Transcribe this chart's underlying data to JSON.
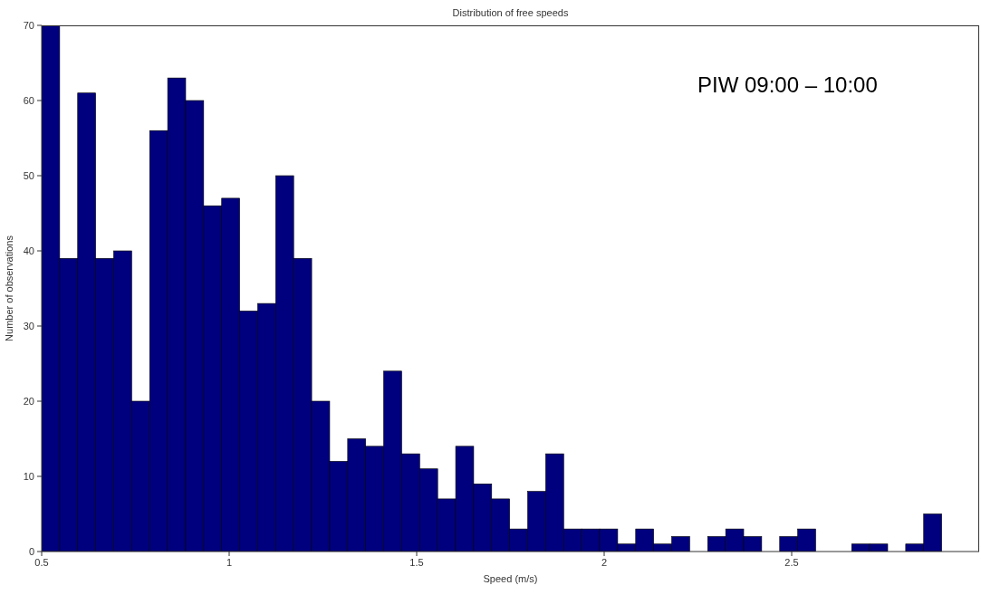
{
  "chart_data": {
    "type": "histogram",
    "title": "Distribution of free speeds",
    "xlabel": "Speed (m/s)",
    "ylabel": "Number of observations",
    "annotations": [
      "PIW 09:00 – 10:00"
    ],
    "color": "#00007f",
    "bins": [
      0.5,
      0.548,
      0.596,
      0.644,
      0.692,
      0.74,
      0.788,
      0.836,
      0.884,
      0.932,
      0.98,
      1.028,
      1.076,
      1.124,
      1.172,
      1.22,
      1.268,
      1.316,
      1.364,
      1.412,
      1.46,
      1.508,
      1.556,
      1.604,
      1.652,
      1.7,
      1.748,
      1.796,
      1.844,
      1.892,
      1.94,
      1.988,
      2.036,
      2.084,
      2.132,
      2.18,
      2.228,
      2.276,
      2.324,
      2.372,
      2.42,
      2.468,
      2.516,
      2.564,
      2.612,
      2.66,
      2.708,
      2.756,
      2.804,
      2.852,
      2.9
    ],
    "values": [
      70,
      39,
      61,
      39,
      40,
      20,
      56,
      63,
      60,
      46,
      47,
      32,
      33,
      50,
      39,
      20,
      12,
      15,
      14,
      24,
      13,
      11,
      7,
      14,
      9,
      7,
      3,
      8,
      13,
      3,
      3,
      3,
      1,
      3,
      1,
      2,
      0,
      2,
      3,
      2,
      0,
      2,
      3,
      0,
      0,
      1,
      1,
      0,
      1,
      5
    ],
    "xlim": [
      0.5,
      3
    ],
    "xticks": [
      0.5,
      1,
      1.5,
      2,
      2.5
    ],
    "ylim": [
      0,
      70
    ],
    "yticks": [
      0,
      10,
      20,
      30,
      40,
      50,
      60,
      70
    ],
    "grid": false,
    "legend": false
  }
}
